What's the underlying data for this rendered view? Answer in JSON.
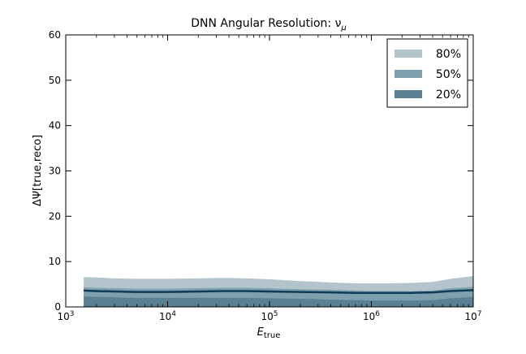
{
  "chart_data": {
    "type": "area",
    "title": "DNN Angular Resolution: ν",
    "title_subscript": "μ",
    "xlabel_main": "E",
    "xlabel_subscript": "true",
    "ylabel": "ΔΨ[true,reco]",
    "xscale": "log",
    "xlim": [
      1000,
      10000000
    ],
    "ylim": [
      0,
      60
    ],
    "x_ticks": [
      1000,
      10000,
      100000,
      1000000,
      10000000
    ],
    "x_tick_labels": [
      {
        "base": "10",
        "exp": "3"
      },
      {
        "base": "10",
        "exp": "4"
      },
      {
        "base": "10",
        "exp": "5"
      },
      {
        "base": "10",
        "exp": "6"
      },
      {
        "base": "10",
        "exp": "7"
      }
    ],
    "y_ticks": [
      0,
      10,
      20,
      30,
      40,
      50,
      60
    ],
    "y_tick_labels": [
      "0",
      "10",
      "20",
      "30",
      "40",
      "50",
      "60"
    ],
    "grid": false,
    "legend_position": "top-right",
    "colors": {
      "band_80": "#b3c4cc",
      "band_50": "#7e9fae",
      "band_20": "#5a8093",
      "median": "#0e3b55"
    },
    "x": [
      1500,
      2000,
      3000,
      5000,
      10000,
      20000,
      35000,
      60000,
      100000,
      200000,
      400000,
      700000,
      1000000,
      1500000,
      2500000,
      4000000,
      6000000,
      10000000
    ],
    "series": [
      {
        "name": "80%",
        "lower": [
          0,
          0,
          0,
          0,
          0,
          0,
          0,
          0,
          0,
          0,
          0,
          0,
          0,
          0,
          0,
          0,
          0,
          0
        ],
        "upper": [
          6.6,
          6.5,
          6.3,
          6.2,
          6.2,
          6.3,
          6.4,
          6.3,
          6.1,
          5.7,
          5.4,
          5.2,
          5.2,
          5.2,
          5.3,
          5.5,
          6.2,
          6.8
        ]
      },
      {
        "name": "50%",
        "lower": [
          0,
          0,
          0,
          0,
          0,
          0,
          0,
          0,
          0,
          0,
          0,
          0,
          0,
          0,
          0,
          0,
          0,
          0
        ],
        "upper": [
          4.3,
          4.2,
          4.1,
          4.0,
          4.0,
          4.1,
          4.2,
          4.2,
          4.1,
          3.9,
          3.8,
          3.6,
          3.5,
          3.5,
          3.5,
          3.6,
          4.1,
          4.4
        ]
      },
      {
        "name": "20%",
        "lower": [
          0,
          0,
          0,
          0,
          0,
          0,
          0,
          0,
          0,
          0,
          0,
          0,
          0,
          0,
          0,
          0,
          0,
          0
        ],
        "upper": [
          2.3,
          2.2,
          2.1,
          2.0,
          2.0,
          2.0,
          2.0,
          2.0,
          1.9,
          1.8,
          1.6,
          1.5,
          1.4,
          1.4,
          1.4,
          1.5,
          1.9,
          2.2
        ]
      }
    ],
    "median": [
      3.6,
      3.5,
      3.4,
      3.3,
      3.3,
      3.4,
      3.5,
      3.5,
      3.4,
      3.3,
      3.2,
      3.1,
      3.1,
      3.1,
      3.1,
      3.2,
      3.5,
      3.7
    ]
  }
}
